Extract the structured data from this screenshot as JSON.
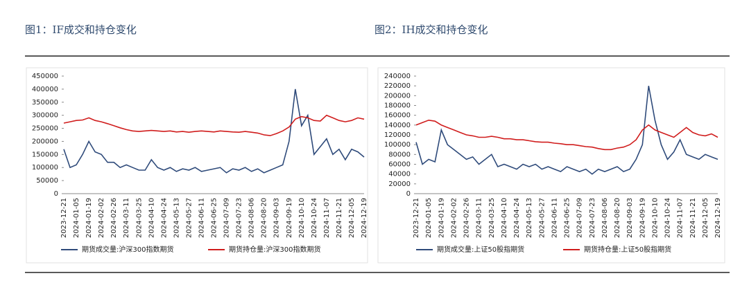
{
  "chart_data": [
    {
      "type": "line",
      "title": "图1：IF成交和持仓变化",
      "categories": [
        "2023-12-21",
        null,
        "2024-01-05",
        null,
        "2024-01-19",
        null,
        "2024-02-02",
        null,
        "2024-02-26",
        null,
        "2024-03-11",
        null,
        "2024-03-25",
        null,
        "2024-04-10",
        null,
        "2024-04-24",
        null,
        "2024-05-13",
        null,
        "2024-05-27",
        null,
        "2024-06-11",
        null,
        "2024-06-25",
        null,
        "2024-07-09",
        null,
        "2024-07-23",
        null,
        "2024-08-06",
        null,
        "2024-08-20",
        null,
        "2024-09-03",
        null,
        "2024-09-19",
        null,
        "2024-10-10",
        null,
        "2024-10-24",
        null,
        "2024-11-07",
        null,
        "2024-11-21",
        null,
        "2024-12-05",
        null,
        "2024-12-19"
      ],
      "series": [
        {
          "name": "期货成交量:沪深300指数期货",
          "color": "#2e4a7a",
          "values": [
            170000,
            100000,
            110000,
            150000,
            200000,
            160000,
            150000,
            120000,
            120000,
            100000,
            110000,
            100000,
            90000,
            90000,
            130000,
            100000,
            90000,
            100000,
            85000,
            95000,
            90000,
            100000,
            85000,
            90000,
            95000,
            100000,
            80000,
            95000,
            90000,
            100000,
            85000,
            95000,
            80000,
            90000,
            100000,
            110000,
            200000,
            400000,
            260000,
            300000,
            150000,
            180000,
            210000,
            150000,
            170000,
            130000,
            170000,
            160000,
            140000
          ]
        },
        {
          "name": "期货持仓量:沪深300指数期货",
          "color": "#d01c1c",
          "values": [
            270000,
            275000,
            280000,
            282000,
            290000,
            280000,
            275000,
            268000,
            260000,
            252000,
            245000,
            240000,
            238000,
            240000,
            242000,
            240000,
            238000,
            240000,
            236000,
            238000,
            235000,
            238000,
            240000,
            238000,
            236000,
            240000,
            238000,
            236000,
            235000,
            238000,
            235000,
            232000,
            225000,
            222000,
            230000,
            240000,
            255000,
            285000,
            295000,
            290000,
            280000,
            278000,
            300000,
            290000,
            280000,
            275000,
            280000,
            290000,
            285000
          ]
        }
      ],
      "ylim": [
        0,
        450000
      ],
      "yticks": [
        0,
        50000,
        100000,
        150000,
        200000,
        250000,
        300000,
        350000,
        400000,
        450000
      ]
    },
    {
      "type": "line",
      "title": "图2：IH成交和持仓变化",
      "categories": [
        "2023-12-21",
        null,
        "2024-01-05",
        null,
        "2024-01-19",
        null,
        "2024-02-02",
        null,
        "2024-02-26",
        null,
        "2024-03-11",
        null,
        "2024-03-25",
        null,
        "2024-04-10",
        null,
        "2024-04-24",
        null,
        "2024-05-13",
        null,
        "2024-05-27",
        null,
        "2024-06-11",
        null,
        "2024-06-25",
        null,
        "2024-07-09",
        null,
        "2024-07-23",
        null,
        "2024-08-06",
        null,
        "2024-08-20",
        null,
        "2024-09-03",
        null,
        "2024-09-19",
        null,
        "2024-10-10",
        null,
        "2024-10-24",
        null,
        "2024-11-07",
        null,
        "2024-11-21",
        null,
        "2024-12-05",
        null,
        "2024-12-19"
      ],
      "series": [
        {
          "name": "期货成交量:上证50股指期货",
          "color": "#2e4a7a",
          "values": [
            105000,
            60000,
            70000,
            65000,
            130000,
            100000,
            90000,
            80000,
            70000,
            75000,
            60000,
            70000,
            80000,
            55000,
            60000,
            55000,
            50000,
            60000,
            55000,
            60000,
            50000,
            55000,
            50000,
            45000,
            55000,
            50000,
            45000,
            50000,
            40000,
            50000,
            45000,
            50000,
            55000,
            45000,
            50000,
            70000,
            100000,
            220000,
            150000,
            100000,
            70000,
            85000,
            110000,
            80000,
            75000,
            70000,
            80000,
            75000,
            70000
          ]
        },
        {
          "name": "期货持仓量:上证50股指期货",
          "color": "#d01c1c",
          "values": [
            140000,
            145000,
            150000,
            148000,
            140000,
            135000,
            130000,
            125000,
            120000,
            118000,
            115000,
            115000,
            117000,
            115000,
            112000,
            112000,
            110000,
            110000,
            108000,
            106000,
            105000,
            105000,
            103000,
            102000,
            100000,
            100000,
            98000,
            96000,
            95000,
            92000,
            90000,
            90000,
            93000,
            95000,
            100000,
            110000,
            130000,
            140000,
            130000,
            125000,
            120000,
            115000,
            125000,
            135000,
            125000,
            120000,
            118000,
            122000,
            115000
          ]
        }
      ],
      "ylim": [
        0,
        240000
      ],
      "yticks": [
        0,
        20000,
        40000,
        60000,
        80000,
        100000,
        120000,
        140000,
        160000,
        180000,
        200000,
        220000,
        240000
      ]
    }
  ]
}
